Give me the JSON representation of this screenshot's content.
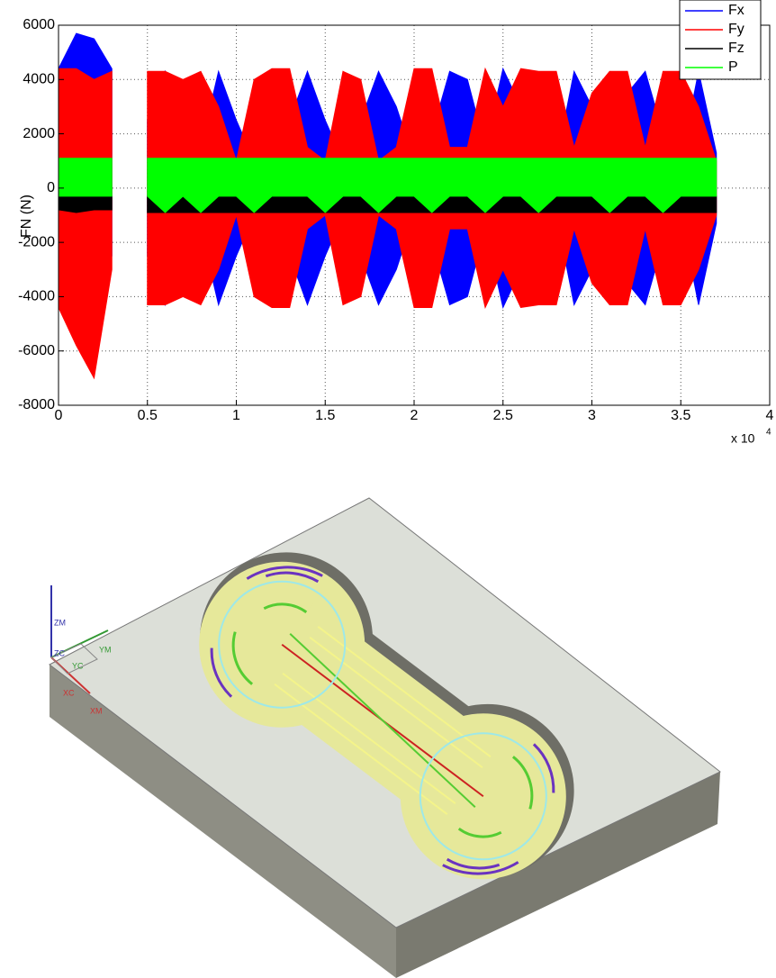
{
  "chart_data": {
    "type": "area-band",
    "ylabel": "FN (N)",
    "x_multiplier": {
      "base": "x 10",
      "exponent": "4"
    },
    "x": [
      0,
      0.1,
      0.2,
      0.3,
      0.4,
      0.5,
      0.6,
      0.7,
      0.8,
      0.9,
      1.0,
      1.1,
      1.2,
      1.3,
      1.4,
      1.5,
      1.6,
      1.7,
      1.8,
      1.9,
      2.0,
      2.1,
      2.2,
      2.3,
      2.4,
      2.5,
      2.6,
      2.7,
      2.8,
      2.9,
      3.0,
      3.1,
      3.2,
      3.3,
      3.4,
      3.5,
      3.6,
      3.7
    ],
    "series": [
      {
        "name": "Fx",
        "color": "#0000ff",
        "upper": [
          4400,
          5700,
          5500,
          4400,
          null,
          2500,
          4300,
          2000,
          1500,
          4300,
          2500,
          1000,
          1500,
          2500,
          4300,
          2500,
          1000,
          2500,
          4300,
          3000,
          1000,
          2000,
          4300,
          4000,
          1500,
          4400,
          3000,
          1500,
          1000,
          4300,
          3000,
          1000,
          3500,
          4300,
          2000,
          1000,
          4300,
          1300
        ],
        "lower": [
          -4400,
          -4400,
          -3000,
          -2500,
          null,
          -2500,
          -4300,
          -2000,
          -1500,
          -4300,
          -2500,
          -1000,
          -1500,
          -2500,
          -4300,
          -2500,
          -1000,
          -2500,
          -4300,
          -3000,
          -1000,
          -2000,
          -4300,
          -4000,
          -1500,
          -4400,
          -3000,
          -1500,
          -1000,
          -4300,
          -3000,
          -1000,
          -3500,
          -4300,
          -2000,
          -1000,
          -4300,
          -1300
        ]
      },
      {
        "name": "Fy",
        "color": "#ff0000",
        "upper": [
          4400,
          4400,
          4000,
          4300,
          null,
          4300,
          4300,
          4000,
          4300,
          3000,
          1000,
          4000,
          4400,
          4400,
          1500,
          1000,
          4300,
          4000,
          1000,
          1500,
          4400,
          4400,
          1500,
          1500,
          4400,
          3000,
          4400,
          4300,
          4300,
          1500,
          3500,
          4300,
          4300,
          1500,
          4300,
          4300,
          3000,
          1000
        ],
        "lower": [
          -4400,
          -5800,
          -7000,
          -3000,
          null,
          -4300,
          -4300,
          -4000,
          -4300,
          -3000,
          -1000,
          -4000,
          -4400,
          -4400,
          -1500,
          -1000,
          -4300,
          -4000,
          -1000,
          -1500,
          -4400,
          -4400,
          -1500,
          -1500,
          -4400,
          -3000,
          -4400,
          -4300,
          -4300,
          -1500,
          -3500,
          -4300,
          -4300,
          -1500,
          -4300,
          -4300,
          -3000,
          -1000
        ]
      },
      {
        "name": "Fz",
        "color": "#000000",
        "upper": [
          -300,
          -300,
          -300,
          -300,
          null,
          -300,
          -300,
          -300,
          -300,
          -300,
          -300,
          -300,
          -300,
          -300,
          -300,
          -300,
          -300,
          -300,
          -300,
          -300,
          -300,
          -300,
          -300,
          -300,
          -300,
          -300,
          -300,
          -300,
          -300,
          -300,
          -300,
          -300,
          -300,
          -300,
          -300,
          -300,
          -300,
          -300
        ],
        "lower": [
          -800,
          -900,
          -800,
          -800,
          null,
          -900,
          -900,
          -900,
          -900,
          -900,
          -900,
          -900,
          -900,
          -900,
          -900,
          -900,
          -900,
          -900,
          -900,
          -900,
          -900,
          -900,
          -900,
          -900,
          -900,
          -900,
          -900,
          -900,
          -900,
          -900,
          -900,
          -900,
          -900,
          -900,
          -900,
          -900,
          -900,
          -900
        ]
      },
      {
        "name": "P",
        "color": "#00ff00",
        "upper": [
          1100,
          1100,
          1100,
          1100,
          null,
          1100,
          1100,
          1100,
          1100,
          1100,
          1100,
          1100,
          1100,
          1100,
          1100,
          1100,
          1100,
          1100,
          1100,
          1100,
          1100,
          1100,
          1100,
          1100,
          1100,
          1100,
          1100,
          1100,
          1100,
          1100,
          1100,
          1100,
          1100,
          1100,
          1100,
          1100,
          1100,
          1100
        ],
        "lower": [
          -300,
          -300,
          -300,
          -300,
          null,
          -300,
          -900,
          -300,
          -900,
          -300,
          -300,
          -900,
          -300,
          -300,
          -300,
          -900,
          -300,
          -300,
          -900,
          -300,
          -300,
          -900,
          -300,
          -300,
          -900,
          -300,
          -300,
          -900,
          -300,
          -300,
          -300,
          -900,
          -300,
          -300,
          -900,
          -300,
          -300,
          -300
        ]
      }
    ],
    "xlim": [
      0,
      4
    ],
    "xticks": [
      0,
      0.5,
      1,
      1.5,
      2,
      2.5,
      3,
      3.5,
      4
    ],
    "ylim": [
      -8000,
      6000
    ],
    "yticks": [
      -8000,
      -6000,
      -4000,
      -2000,
      0,
      2000,
      4000,
      6000
    ],
    "grid": true,
    "legend": "upper-right"
  },
  "cad_view": {
    "axis_labels": [
      "ZM",
      "ZC",
      "YC",
      "YM",
      "XC",
      "XM"
    ]
  }
}
